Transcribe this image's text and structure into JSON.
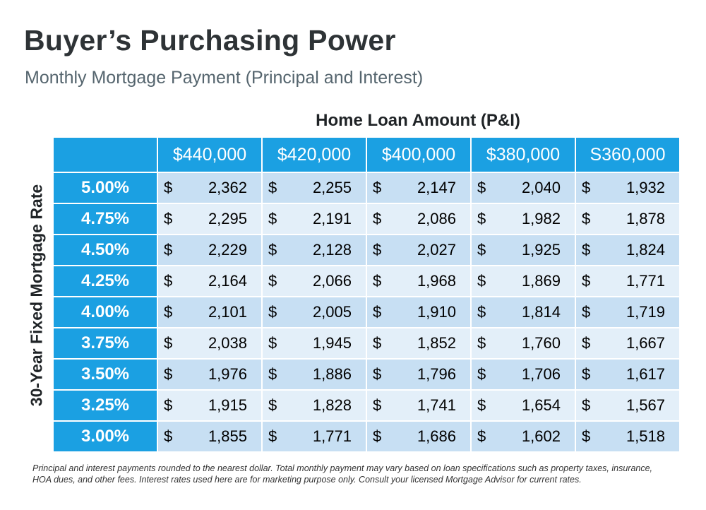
{
  "title": "Buyer’s Purchasing Power",
  "subtitle": "Monthly Mortgage Payment (Principal and Interest)",
  "chart_data": {
    "type": "table",
    "column_axis_label": "Home Loan Amount (P&I)",
    "row_axis_label": "30-Year Fixed Mortgage Rate",
    "currency_symbol": "$",
    "columns": [
      "$440,000",
      "$420,000",
      "$400,000",
      "$380,000",
      "S360,000"
    ],
    "rows": [
      {
        "rate": "5.00%",
        "values": [
          "2,362",
          "2,255",
          "2,147",
          "2,040",
          "1,932"
        ]
      },
      {
        "rate": "4.75%",
        "values": [
          "2,295",
          "2,191",
          "2,086",
          "1,982",
          "1,878"
        ]
      },
      {
        "rate": "4.50%",
        "values": [
          "2,229",
          "2,128",
          "2,027",
          "1,925",
          "1,824"
        ]
      },
      {
        "rate": "4.25%",
        "values": [
          "2,164",
          "2,066",
          "1,968",
          "1,869",
          "1,771"
        ]
      },
      {
        "rate": "4.00%",
        "values": [
          "2,101",
          "2,005",
          "1,910",
          "1,814",
          "1,719"
        ]
      },
      {
        "rate": "3.75%",
        "values": [
          "2,038",
          "1,945",
          "1,852",
          "1,760",
          "1,667"
        ]
      },
      {
        "rate": "3.50%",
        "values": [
          "1,976",
          "1,886",
          "1,796",
          "1,706",
          "1,617"
        ]
      },
      {
        "rate": "3.25%",
        "values": [
          "1,915",
          "1,828",
          "1,741",
          "1,654",
          "1,567"
        ]
      },
      {
        "rate": "3.00%",
        "values": [
          "1,855",
          "1,771",
          "1,686",
          "1,602",
          "1,518"
        ]
      }
    ]
  },
  "footnote": "Principal and interest payments rounded to the nearest dollar. Total monthly payment may vary based on loan specifications such as property taxes, insurance, HOA dues, and other fees. Interest rates used here are for marketing purpose only. Consult your licensed Mortgage Advisor for current rates.",
  "colors": {
    "header_blue": "#1ba0e2",
    "row_dark": "#c7dff3",
    "row_light": "#e3eff9",
    "title": "#2e3336",
    "subtitle": "#55656e"
  }
}
